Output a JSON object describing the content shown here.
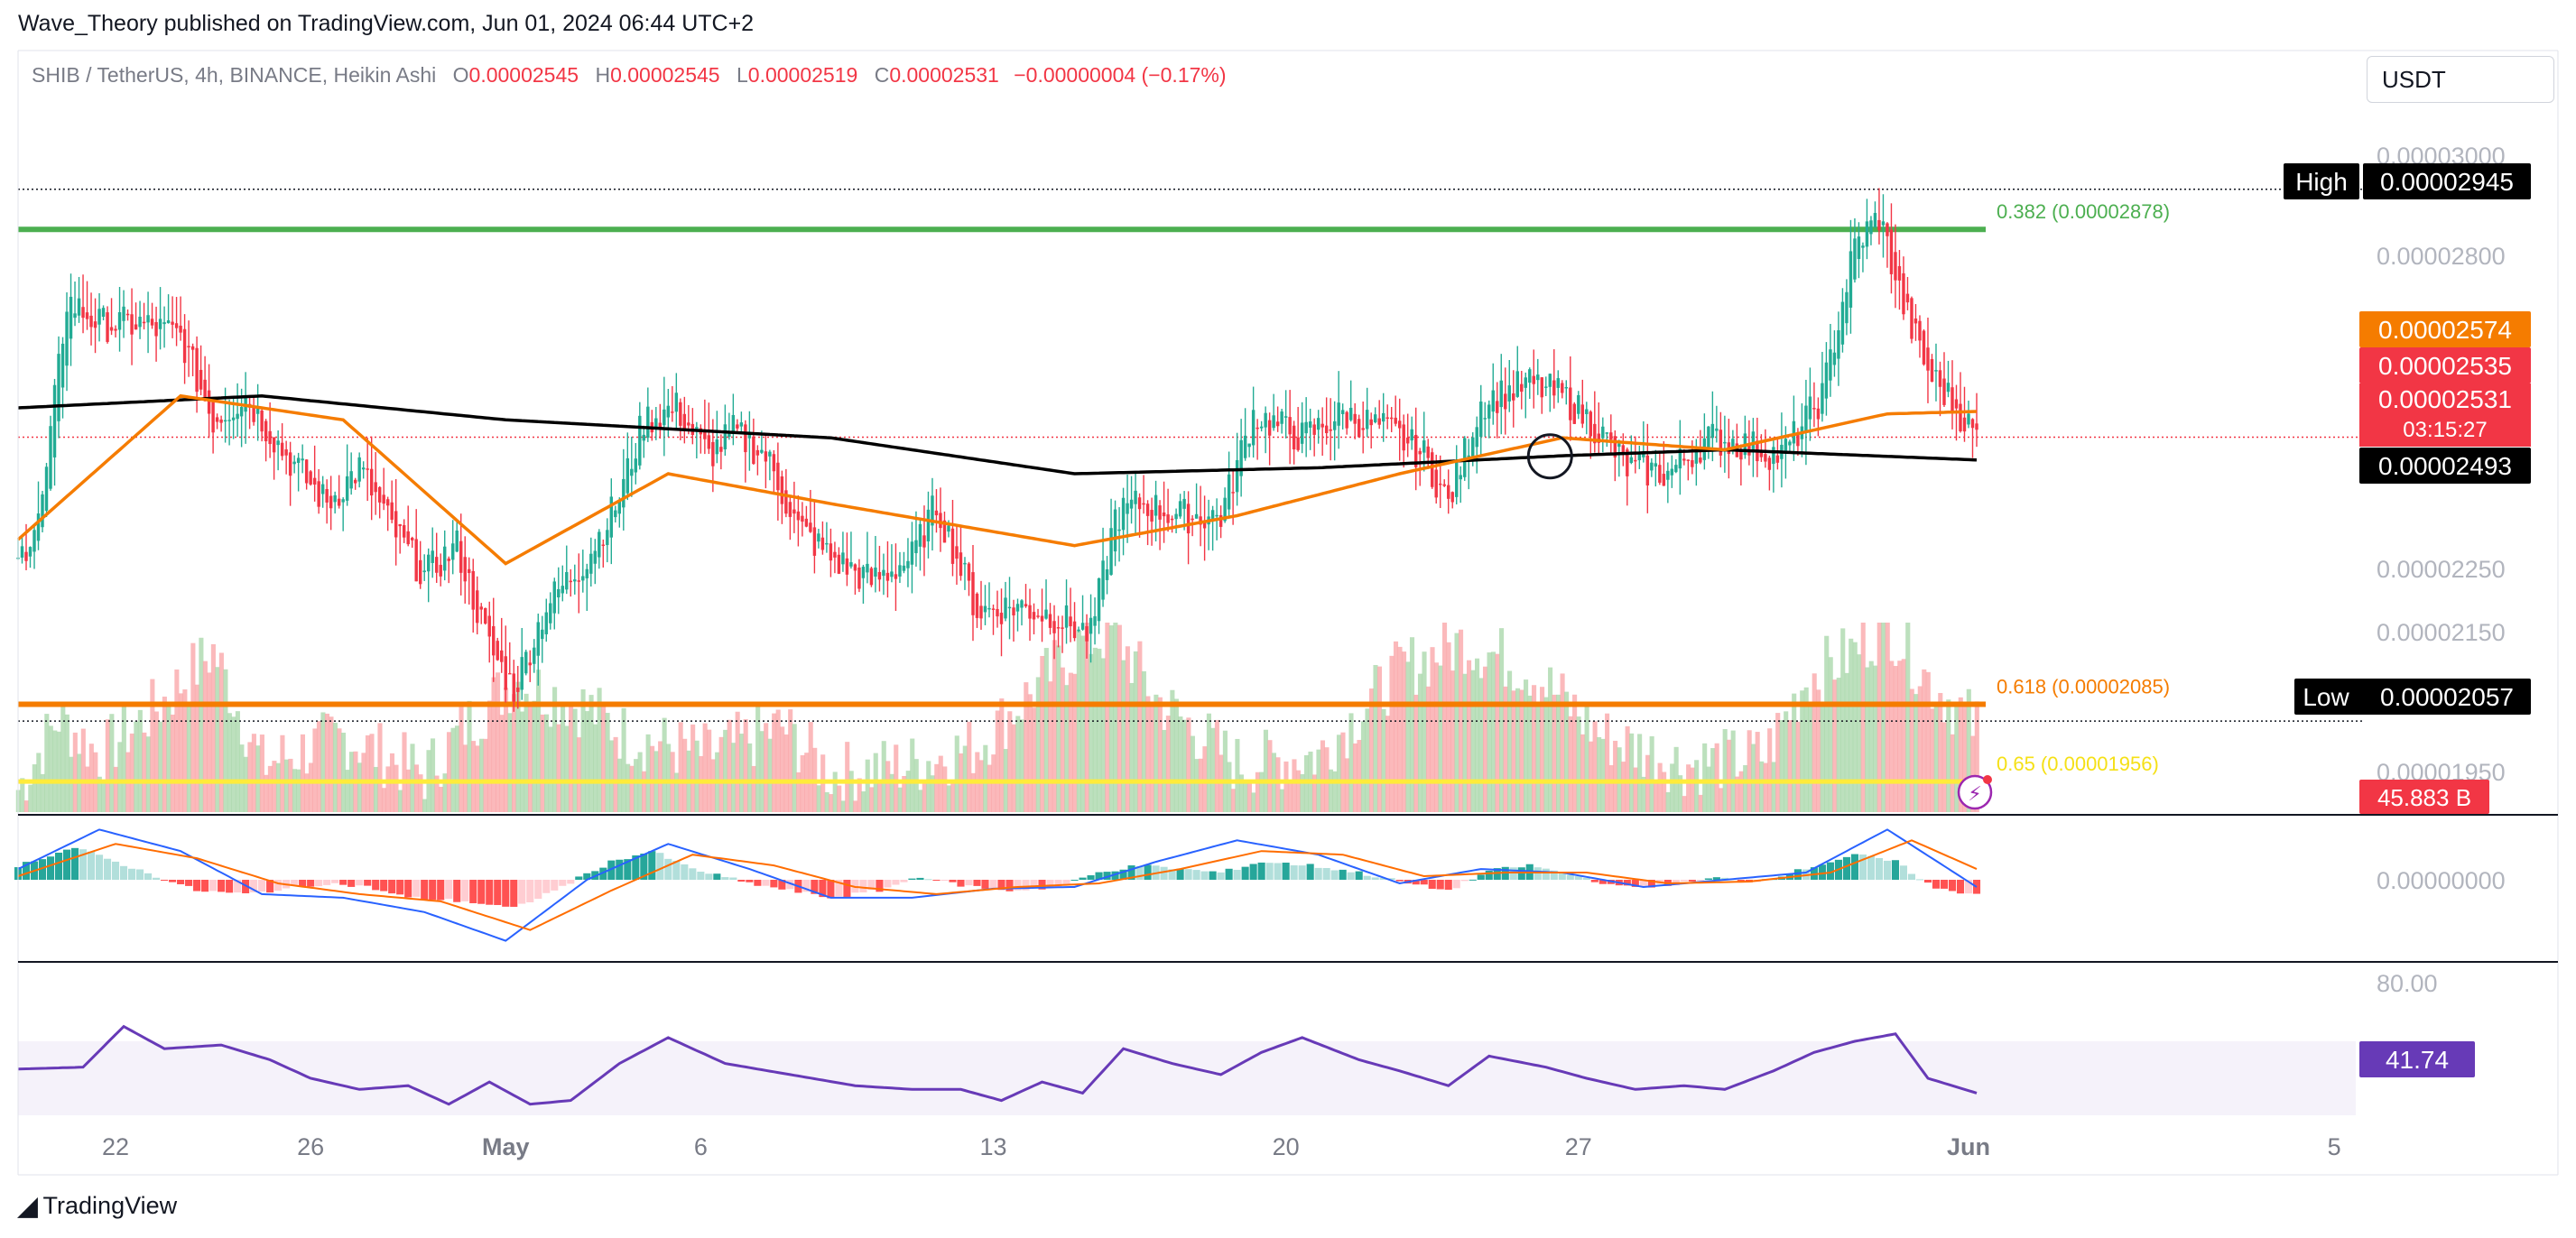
{
  "attribution": "Wave_Theory published on TradingView.com, Jun 01, 2024 06:44 UTC+2",
  "footer_logo": "TradingView",
  "currency": "USDT",
  "legend": {
    "symbol": "SHIB / TetherUS, 4h, BINANCE, Heikin Ashi",
    "open_label": "O",
    "open": "0.00002545",
    "high_label": "H",
    "high": "0.00002545",
    "low_label": "L",
    "low": "0.00002519",
    "close_label": "C",
    "close": "0.00002531",
    "change": "−0.00000004 (−0.17%)"
  },
  "colors": {
    "bull": "#22ab94",
    "bear": "#f23645",
    "ema_fast": "#f57c00",
    "ema_slow": "#000000",
    "fib_382": "#4caf50",
    "fib_618": "#f57c00",
    "fib_65": "#ffeb3b",
    "macd": "#2962ff",
    "signal": "#ff6d00",
    "rsi": "#673ab7"
  },
  "chart_data": [
    {
      "type": "candlestick",
      "panel": "price",
      "x_ticks": [
        "22",
        "26",
        "May",
        "6",
        "13",
        "20",
        "27",
        "Jun",
        "5"
      ],
      "y_ticks": [
        "0.00003000",
        "0.00002800",
        "0.00002250",
        "0.00002150",
        "0.00001950"
      ],
      "ylim": [
        1.905e-05,
        3.02e-05
      ],
      "price_labels": {
        "ema_fast": "0.00002574",
        "close": "0.00002535",
        "last": "0.00002531",
        "countdown": "03:15:27",
        "ema_slow": "0.00002493",
        "high_tag": "High",
        "high_value": "0.00002945",
        "low_tag": "Low",
        "low_value": "0.00002057",
        "volume": "45.883 B"
      },
      "fib_levels": [
        {
          "label": "0.382 (0.00002878)",
          "value": 2.878e-05
        },
        {
          "label": "0.618 (0.00002085)",
          "value": 2.085e-05
        },
        {
          "label": "0.65 (0.00001956)",
          "value": 1.956e-05
        }
      ],
      "series_close_keypoints": [
        [
          0,
          2.32e-05
        ],
        [
          6,
          2.42e-05
        ],
        [
          12,
          2.76e-05
        ],
        [
          20,
          2.72e-05
        ],
        [
          30,
          2.72e-05
        ],
        [
          40,
          2.7e-05
        ],
        [
          48,
          2.56e-05
        ],
        [
          56,
          2.6e-05
        ],
        [
          66,
          2.5e-05
        ],
        [
          76,
          2.42e-05
        ],
        [
          84,
          2.48e-05
        ],
        [
          92,
          2.38e-05
        ],
        [
          100,
          2.3e-05
        ],
        [
          108,
          2.35e-05
        ],
        [
          116,
          2.18e-05
        ],
        [
          122,
          2.11e-05
        ],
        [
          130,
          2.25e-05
        ],
        [
          140,
          2.33e-05
        ],
        [
          148,
          2.43e-05
        ],
        [
          154,
          2.56e-05
        ],
        [
          162,
          2.58e-05
        ],
        [
          170,
          2.5e-05
        ],
        [
          176,
          2.54e-05
        ],
        [
          184,
          2.5e-05
        ],
        [
          192,
          2.38e-05
        ],
        [
          200,
          2.33e-05
        ],
        [
          210,
          2.29e-05
        ],
        [
          220,
          2.33e-05
        ],
        [
          226,
          2.42e-05
        ],
        [
          236,
          2.24e-05
        ],
        [
          246,
          2.25e-05
        ],
        [
          256,
          2.23e-05
        ],
        [
          264,
          2.2e-05
        ],
        [
          270,
          2.4e-05
        ],
        [
          276,
          2.42e-05
        ],
        [
          286,
          2.4e-05
        ],
        [
          296,
          2.4e-05
        ],
        [
          304,
          2.57e-05
        ],
        [
          316,
          2.53e-05
        ],
        [
          326,
          2.57e-05
        ],
        [
          338,
          2.54e-05
        ],
        [
          346,
          2.5e-05
        ],
        [
          352,
          2.42e-05
        ],
        [
          360,
          2.59e-05
        ],
        [
          372,
          2.62e-05
        ],
        [
          380,
          2.6e-05
        ],
        [
          388,
          2.55e-05
        ],
        [
          396,
          2.48e-05
        ],
        [
          406,
          2.47e-05
        ],
        [
          416,
          2.53e-05
        ],
        [
          424,
          2.52e-05
        ],
        [
          434,
          2.5e-05
        ],
        [
          444,
          2.6e-05
        ],
        [
          452,
          2.85e-05
        ],
        [
          458,
          2.9e-05
        ],
        [
          464,
          2.75e-05
        ],
        [
          470,
          2.64e-05
        ],
        [
          476,
          2.59e-05
        ],
        [
          482,
          2.531e-05
        ]
      ],
      "ema_fast_keypoints": [
        [
          0,
          2.36e-05
        ],
        [
          40,
          2.6e-05
        ],
        [
          80,
          2.56e-05
        ],
        [
          120,
          2.32e-05
        ],
        [
          160,
          2.47e-05
        ],
        [
          200,
          2.42e-05
        ],
        [
          260,
          2.35e-05
        ],
        [
          300,
          2.4e-05
        ],
        [
          340,
          2.47e-05
        ],
        [
          380,
          2.53e-05
        ],
        [
          420,
          2.51e-05
        ],
        [
          460,
          2.57e-05
        ],
        [
          482,
          2.574e-05
        ]
      ],
      "ema_slow_keypoints": [
        [
          0,
          2.58e-05
        ],
        [
          60,
          2.6e-05
        ],
        [
          120,
          2.56e-05
        ],
        [
          200,
          2.53e-05
        ],
        [
          260,
          2.47e-05
        ],
        [
          320,
          2.48e-05
        ],
        [
          380,
          2.5e-05
        ],
        [
          420,
          2.51e-05
        ],
        [
          482,
          2.493e-05
        ]
      ],
      "volume_keypoints": [
        [
          0,
          12
        ],
        [
          10,
          50
        ],
        [
          20,
          30
        ],
        [
          34,
          55
        ],
        [
          48,
          85
        ],
        [
          60,
          25
        ],
        [
          80,
          40
        ],
        [
          100,
          20
        ],
        [
          110,
          45
        ],
        [
          122,
          70
        ],
        [
          140,
          55
        ],
        [
          150,
          40
        ],
        [
          170,
          30
        ],
        [
          188,
          45
        ],
        [
          200,
          20
        ],
        [
          220,
          25
        ],
        [
          236,
          35
        ],
        [
          262,
          90
        ],
        [
          270,
          95
        ],
        [
          280,
          60
        ],
        [
          300,
          25
        ],
        [
          320,
          30
        ],
        [
          340,
          75
        ],
        [
          356,
          90
        ],
        [
          372,
          75
        ],
        [
          390,
          40
        ],
        [
          410,
          25
        ],
        [
          430,
          30
        ],
        [
          440,
          70
        ],
        [
          452,
          85
        ],
        [
          460,
          100
        ],
        [
          470,
          70
        ],
        [
          482,
          45
        ]
      ]
    },
    {
      "type": "bar",
      "panel": "macd",
      "y_ticks": [
        "0.00000000"
      ],
      "histogram_keypoints": [
        [
          0,
          8
        ],
        [
          14,
          18
        ],
        [
          24,
          10
        ],
        [
          34,
          2
        ],
        [
          44,
          -6
        ],
        [
          56,
          -8
        ],
        [
          66,
          -5
        ],
        [
          76,
          -2
        ],
        [
          86,
          -4
        ],
        [
          96,
          -10
        ],
        [
          110,
          -12
        ],
        [
          122,
          -16
        ],
        [
          132,
          -6
        ],
        [
          146,
          10
        ],
        [
          156,
          16
        ],
        [
          166,
          6
        ],
        [
          180,
          -2
        ],
        [
          190,
          -6
        ],
        [
          200,
          -10
        ],
        [
          212,
          -6
        ],
        [
          222,
          2
        ],
        [
          232,
          -3
        ],
        [
          244,
          -6
        ],
        [
          256,
          -4
        ],
        [
          266,
          4
        ],
        [
          276,
          8
        ],
        [
          286,
          6
        ],
        [
          296,
          4
        ],
        [
          306,
          10
        ],
        [
          318,
          8
        ],
        [
          330,
          4
        ],
        [
          342,
          -2
        ],
        [
          352,
          -6
        ],
        [
          362,
          5
        ],
        [
          372,
          8
        ],
        [
          384,
          2
        ],
        [
          394,
          -4
        ],
        [
          406,
          -3
        ],
        [
          418,
          1
        ],
        [
          428,
          -1
        ],
        [
          438,
          5
        ],
        [
          452,
          14
        ],
        [
          462,
          10
        ],
        [
          472,
          -5
        ],
        [
          482,
          -8
        ]
      ],
      "macd_keypoints": [
        [
          0,
          6
        ],
        [
          20,
          28
        ],
        [
          40,
          16
        ],
        [
          60,
          -8
        ],
        [
          80,
          -10
        ],
        [
          100,
          -18
        ],
        [
          120,
          -34
        ],
        [
          140,
          0
        ],
        [
          160,
          20
        ],
        [
          180,
          6
        ],
        [
          200,
          -10
        ],
        [
          220,
          -10
        ],
        [
          240,
          -5
        ],
        [
          260,
          -4
        ],
        [
          280,
          10
        ],
        [
          300,
          22
        ],
        [
          320,
          14
        ],
        [
          340,
          -2
        ],
        [
          360,
          6
        ],
        [
          380,
          4
        ],
        [
          400,
          -4
        ],
        [
          420,
          0
        ],
        [
          440,
          4
        ],
        [
          460,
          28
        ],
        [
          482,
          -4
        ]
      ],
      "signal_keypoints": [
        [
          0,
          2
        ],
        [
          24,
          20
        ],
        [
          44,
          12
        ],
        [
          64,
          -2
        ],
        [
          84,
          -8
        ],
        [
          104,
          -12
        ],
        [
          126,
          -28
        ],
        [
          146,
          -6
        ],
        [
          166,
          14
        ],
        [
          186,
          8
        ],
        [
          206,
          -4
        ],
        [
          226,
          -8
        ],
        [
          246,
          -4
        ],
        [
          266,
          -2
        ],
        [
          286,
          6
        ],
        [
          306,
          16
        ],
        [
          326,
          14
        ],
        [
          346,
          2
        ],
        [
          366,
          4
        ],
        [
          386,
          4
        ],
        [
          406,
          -2
        ],
        [
          426,
          -1
        ],
        [
          446,
          4
        ],
        [
          466,
          22
        ],
        [
          482,
          6
        ]
      ]
    },
    {
      "type": "line",
      "panel": "rsi",
      "y_ticks": [
        "80.00"
      ],
      "band": [
        30,
        70
      ],
      "last_value": "41.74",
      "rsi_keypoints": [
        [
          0,
          55
        ],
        [
          16,
          56
        ],
        [
          26,
          78
        ],
        [
          36,
          66
        ],
        [
          50,
          68
        ],
        [
          62,
          60
        ],
        [
          72,
          50
        ],
        [
          84,
          44
        ],
        [
          96,
          46
        ],
        [
          106,
          36
        ],
        [
          116,
          48
        ],
        [
          126,
          36
        ],
        [
          136,
          38
        ],
        [
          148,
          58
        ],
        [
          160,
          72
        ],
        [
          174,
          58
        ],
        [
          190,
          52
        ],
        [
          206,
          46
        ],
        [
          220,
          44
        ],
        [
          232,
          44
        ],
        [
          242,
          38
        ],
        [
          252,
          48
        ],
        [
          262,
          42
        ],
        [
          272,
          66
        ],
        [
          284,
          58
        ],
        [
          296,
          52
        ],
        [
          306,
          64
        ],
        [
          316,
          72
        ],
        [
          330,
          60
        ],
        [
          340,
          54
        ],
        [
          352,
          46
        ],
        [
          362,
          62
        ],
        [
          376,
          56
        ],
        [
          386,
          50
        ],
        [
          398,
          44
        ],
        [
          410,
          46
        ],
        [
          420,
          44
        ],
        [
          432,
          54
        ],
        [
          442,
          64
        ],
        [
          452,
          70
        ],
        [
          462,
          74
        ],
        [
          470,
          50
        ],
        [
          482,
          42
        ]
      ]
    }
  ]
}
